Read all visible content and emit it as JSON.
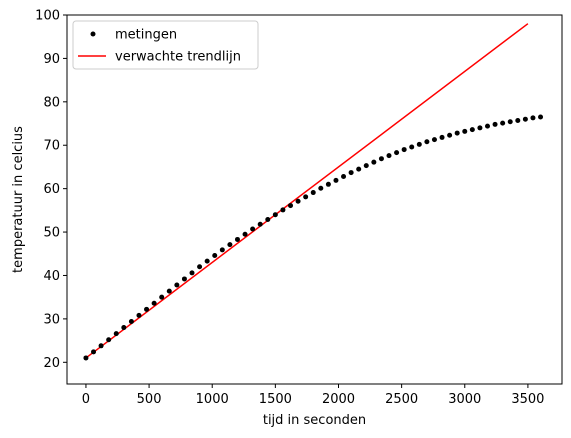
{
  "chart_data": {
    "type": "scatter",
    "xlabel": "tijd in seconden",
    "ylabel": "temperatuur in celcius",
    "xlim": [
      -150,
      3770
    ],
    "ylim": [
      15,
      100
    ],
    "xticks": [
      0,
      500,
      1000,
      1500,
      2000,
      2500,
      3000,
      3500
    ],
    "yticks": [
      20,
      30,
      40,
      50,
      60,
      70,
      80,
      90,
      100
    ],
    "grid": false,
    "legend_placement": "top-left",
    "series": [
      {
        "name": "metingen",
        "kind": "points",
        "color": "#000000",
        "x": [
          0,
          60,
          120,
          180,
          240,
          300,
          360,
          420,
          480,
          540,
          600,
          660,
          720,
          780,
          840,
          900,
          960,
          1020,
          1080,
          1140,
          1200,
          1260,
          1320,
          1380,
          1440,
          1500,
          1560,
          1620,
          1680,
          1740,
          1800,
          1860,
          1920,
          1980,
          2040,
          2100,
          2160,
          2220,
          2280,
          2340,
          2400,
          2460,
          2520,
          2580,
          2640,
          2700,
          2760,
          2820,
          2880,
          2940,
          3000,
          3060,
          3120,
          3180,
          3240,
          3300,
          3360,
          3420,
          3480,
          3540,
          3600
        ],
        "y": [
          21.0,
          22.4,
          23.8,
          25.2,
          26.6,
          28.0,
          29.4,
          30.8,
          32.2,
          33.6,
          35.0,
          36.4,
          37.8,
          39.2,
          40.6,
          42.0,
          43.3,
          44.6,
          45.9,
          47.1,
          48.3,
          49.5,
          50.7,
          51.8,
          52.9,
          54.0,
          55.1,
          56.1,
          57.1,
          58.1,
          59.1,
          60.1,
          61.0,
          61.9,
          62.8,
          63.7,
          64.5,
          65.3,
          66.1,
          66.9,
          67.6,
          68.3,
          69.0,
          69.6,
          70.2,
          70.8,
          71.3,
          71.8,
          72.3,
          72.8,
          73.2,
          73.6,
          74.0,
          74.4,
          74.8,
          75.1,
          75.4,
          75.7,
          76.0,
          76.3,
          76.5
        ]
      },
      {
        "name": "verwachte trendlijn",
        "kind": "line",
        "color": "#ff0000",
        "x": [
          0,
          3500
        ],
        "y": [
          21.0,
          98.0
        ]
      }
    ]
  }
}
